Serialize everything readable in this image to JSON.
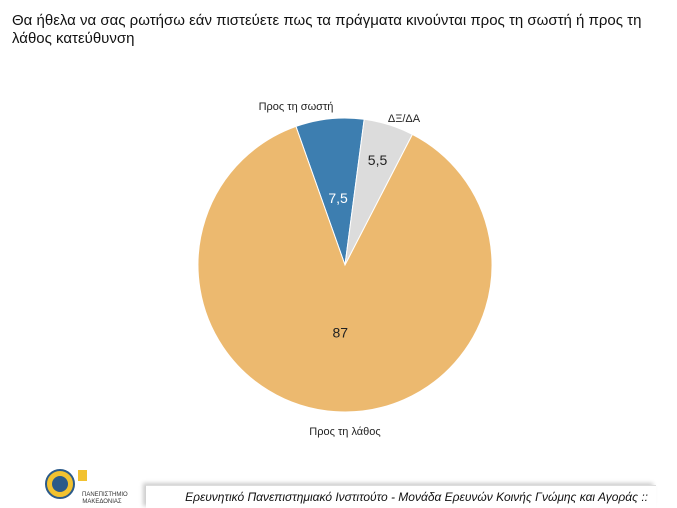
{
  "chart_data": {
    "type": "pie",
    "title": "Θα ήθελα να σας ρωτήσω εάν πιστεύετε πως τα πράγματα κινούνται προς τη σωστή ή προς τη λάθος κατεύθυνση",
    "categories": [
      "Προς τη σωστή",
      "ΔΞ/ΔΑ",
      "Προς τη λάθος"
    ],
    "values": [
      7.5,
      5.5,
      87
    ],
    "value_labels": [
      "7,5",
      "5,5",
      "87"
    ],
    "colors": [
      "#3d7eb0",
      "#dcdcdc",
      "#ecb96f"
    ],
    "label_colors": [
      "#ffffff",
      "#222222",
      "#222222"
    ]
  },
  "footer": {
    "text": "Ερευνητικό Πανεπιστημιακό Ινστιτούτο - Μονάδα Ερευνών Κοινής Γνώμης και Αγοράς ::",
    "logo": "ΠΑΝΕΠΙΣΤΗΜΙΟ ΜΑΚΕΔΟΝΙΑΣ"
  }
}
